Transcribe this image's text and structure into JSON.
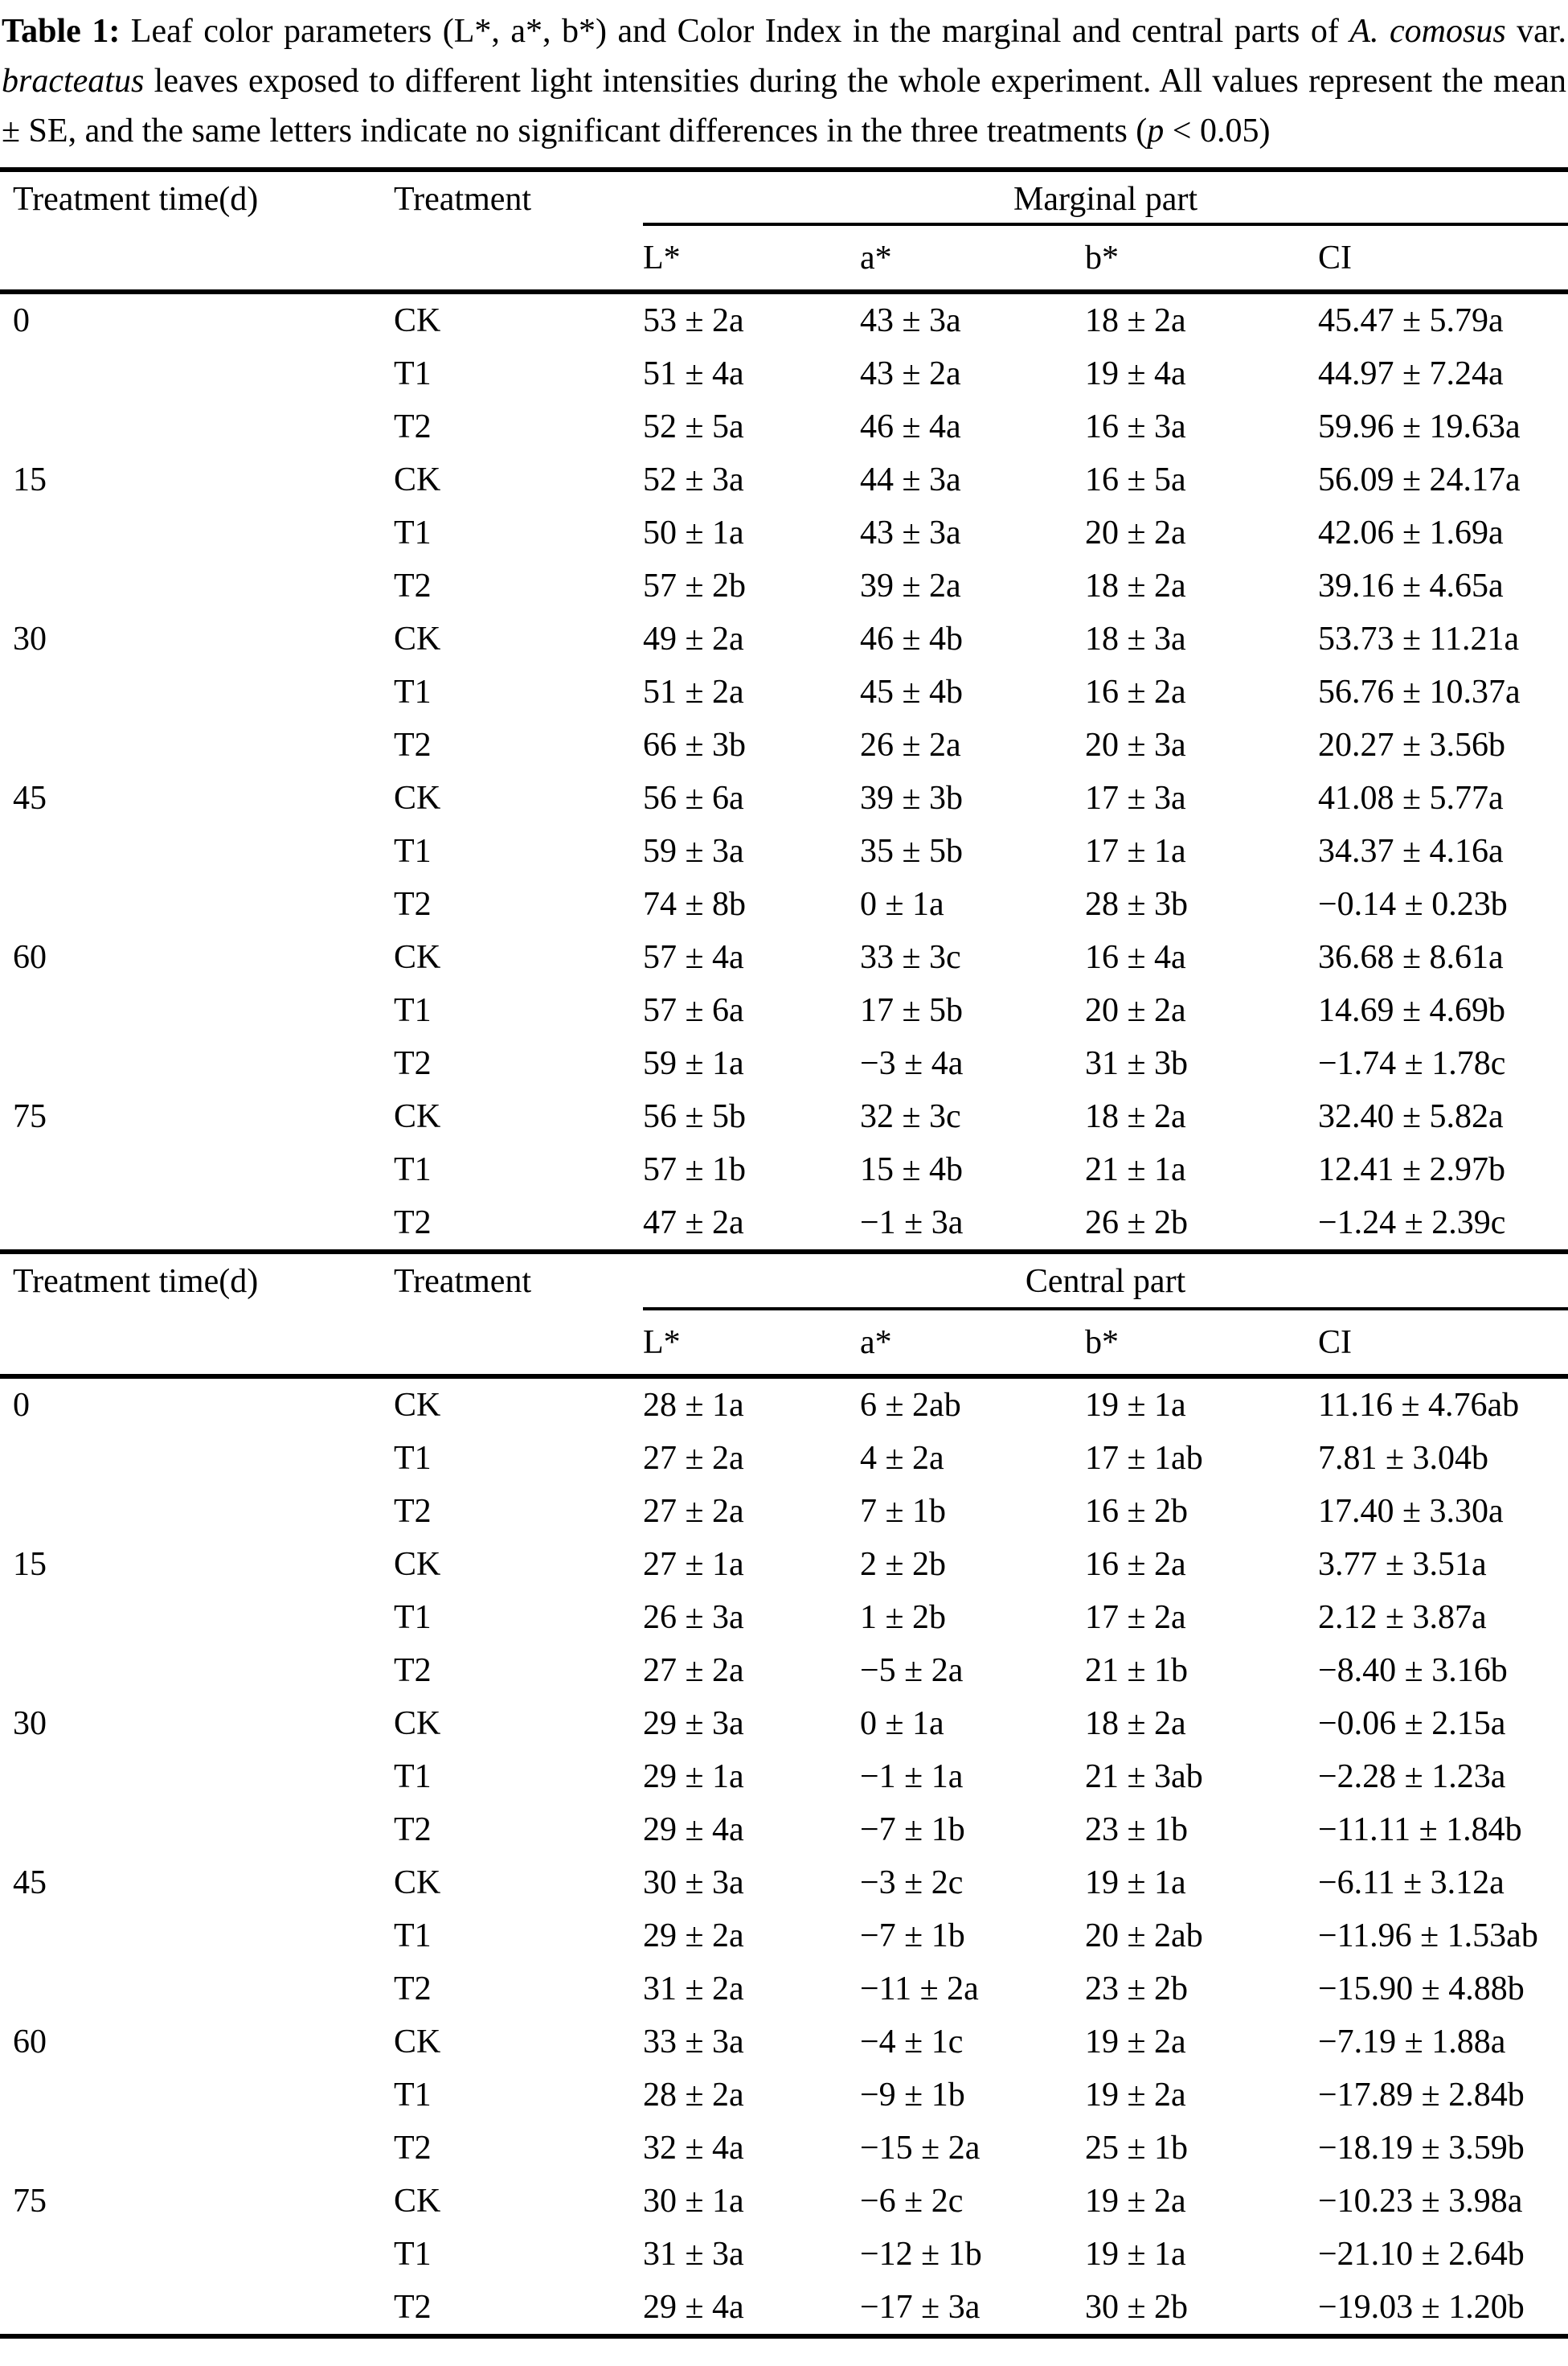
{
  "caption": {
    "label": "Table 1:",
    "part1": "  Leaf color parameters (L*, a*, b*) and Color Index in the marginal and central parts of ",
    "species": "A. comosus",
    "part2": " var. ",
    "variety": "bracteatus",
    "part3": " leaves exposed to different light intensities during the whole experiment. All values represent the mean ± SE, and the same letters indicate no significant differences in the three treatments (",
    "p_symbol": "p",
    "part4": " < 0.05)"
  },
  "sections": [
    {
      "col_headers": [
        "Treatment time(d)",
        "Treatment"
      ],
      "span_header": "Marginal part",
      "sub_headers": [
        "L*",
        "a*",
        "b*",
        "CI"
      ],
      "groups": [
        {
          "time": "0",
          "rows": [
            {
              "treatment": "CK",
              "values": [
                "53 ± 2a",
                "43 ± 3a",
                "18 ± 2a",
                "45.47 ± 5.79a"
              ]
            },
            {
              "treatment": "T1",
              "values": [
                "51 ± 4a",
                "43 ± 2a",
                "19 ± 4a",
                "44.97 ± 7.24a"
              ]
            },
            {
              "treatment": "T2",
              "values": [
                "52 ± 5a",
                "46 ± 4a",
                "16 ± 3a",
                "59.96 ± 19.63a"
              ]
            }
          ]
        },
        {
          "time": "15",
          "rows": [
            {
              "treatment": "CK",
              "values": [
                "52 ± 3a",
                "44 ± 3a",
                "16 ± 5a",
                "56.09 ± 24.17a"
              ]
            },
            {
              "treatment": "T1",
              "values": [
                "50 ± 1a",
                "43 ± 3a",
                "20 ± 2a",
                "42.06 ± 1.69a"
              ]
            },
            {
              "treatment": "T2",
              "values": [
                "57 ± 2b",
                "39 ± 2a",
                "18 ± 2a",
                "39.16 ± 4.65a"
              ]
            }
          ]
        },
        {
          "time": "30",
          "rows": [
            {
              "treatment": "CK",
              "values": [
                "49 ± 2a",
                "46 ± 4b",
                "18 ± 3a",
                "53.73 ± 11.21a"
              ]
            },
            {
              "treatment": "T1",
              "values": [
                "51 ± 2a",
                "45 ± 4b",
                "16 ± 2a",
                "56.76 ± 10.37a"
              ]
            },
            {
              "treatment": "T2",
              "values": [
                "66 ± 3b",
                "26 ± 2a",
                "20 ± 3a",
                "20.27 ± 3.56b"
              ]
            }
          ]
        },
        {
          "time": "45",
          "rows": [
            {
              "treatment": "CK",
              "values": [
                "56 ± 6a",
                "39 ± 3b",
                "17 ± 3a",
                "41.08 ± 5.77a"
              ]
            },
            {
              "treatment": "T1",
              "values": [
                "59 ± 3a",
                "35 ± 5b",
                "17 ± 1a",
                "34.37 ± 4.16a"
              ]
            },
            {
              "treatment": "T2",
              "values": [
                "74 ± 8b",
                "0 ± 1a",
                "28 ± 3b",
                "−0.14 ± 0.23b"
              ]
            }
          ]
        },
        {
          "time": "60",
          "rows": [
            {
              "treatment": "CK",
              "values": [
                "57 ± 4a",
                "33 ± 3c",
                "16 ± 4a",
                "36.68 ± 8.61a"
              ]
            },
            {
              "treatment": "T1",
              "values": [
                "57 ± 6a",
                "17 ± 5b",
                "20 ± 2a",
                "14.69 ± 4.69b"
              ]
            },
            {
              "treatment": "T2",
              "values": [
                "59 ± 1a",
                "−3 ± 4a",
                "31 ± 3b",
                "−1.74 ± 1.78c"
              ]
            }
          ]
        },
        {
          "time": "75",
          "rows": [
            {
              "treatment": "CK",
              "values": [
                "56 ± 5b",
                "32 ± 3c",
                "18 ± 2a",
                "32.40 ± 5.82a"
              ]
            },
            {
              "treatment": "T1",
              "values": [
                "57 ± 1b",
                "15 ± 4b",
                "21 ± 1a",
                "12.41 ± 2.97b"
              ]
            },
            {
              "treatment": "T2",
              "values": [
                "47 ± 2a",
                "−1 ± 3a",
                "26 ± 2b",
                "−1.24 ± 2.39c"
              ]
            }
          ]
        }
      ]
    },
    {
      "col_headers": [
        "Treatment time(d)",
        "Treatment"
      ],
      "span_header": "Central part",
      "sub_headers": [
        "L*",
        "a*",
        "b*",
        "CI"
      ],
      "groups": [
        {
          "time": "0",
          "rows": [
            {
              "treatment": "CK",
              "values": [
                "28 ± 1a",
                "6 ± 2ab",
                "19 ± 1a",
                "11.16 ± 4.76ab"
              ]
            },
            {
              "treatment": "T1",
              "values": [
                "27 ± 2a",
                "4 ± 2a",
                "17 ± 1ab",
                "7.81 ± 3.04b"
              ]
            },
            {
              "treatment": "T2",
              "values": [
                "27 ± 2a",
                "7 ± 1b",
                "16 ± 2b",
                "17.40 ± 3.30a"
              ]
            }
          ]
        },
        {
          "time": "15",
          "rows": [
            {
              "treatment": "CK",
              "values": [
                "27 ± 1a",
                "2 ± 2b",
                "16 ± 2a",
                "3.77 ± 3.51a"
              ]
            },
            {
              "treatment": "T1",
              "values": [
                "26 ± 3a",
                "1 ± 2b",
                "17 ± 2a",
                "2.12 ± 3.87a"
              ]
            },
            {
              "treatment": "T2",
              "values": [
                "27 ± 2a",
                "−5 ± 2a",
                "21 ± 1b",
                "−8.40 ± 3.16b"
              ]
            }
          ]
        },
        {
          "time": "30",
          "rows": [
            {
              "treatment": "CK",
              "values": [
                "29 ± 3a",
                "0 ± 1a",
                "18 ± 2a",
                "−0.06 ± 2.15a"
              ]
            },
            {
              "treatment": "T1",
              "values": [
                "29 ± 1a",
                "−1 ± 1a",
                "21 ± 3ab",
                "−2.28 ± 1.23a"
              ]
            },
            {
              "treatment": "T2",
              "values": [
                "29 ± 4a",
                "−7 ± 1b",
                "23 ± 1b",
                "−11.11 ± 1.84b"
              ]
            }
          ]
        },
        {
          "time": "45",
          "rows": [
            {
              "treatment": "CK",
              "values": [
                "30 ± 3a",
                "−3 ± 2c",
                "19 ± 1a",
                "−6.11 ± 3.12a"
              ]
            },
            {
              "treatment": "T1",
              "values": [
                "29 ± 2a",
                "−7 ± 1b",
                "20 ± 2ab",
                "−11.96 ± 1.53ab"
              ]
            },
            {
              "treatment": "T2",
              "values": [
                "31 ± 2a",
                "−11 ± 2a",
                "23 ± 2b",
                "−15.90 ± 4.88b"
              ]
            }
          ]
        },
        {
          "time": "60",
          "rows": [
            {
              "treatment": "CK",
              "values": [
                "33 ± 3a",
                "−4 ± 1c",
                "19 ± 2a",
                "−7.19 ± 1.88a"
              ]
            },
            {
              "treatment": "T1",
              "values": [
                "28 ± 2a",
                "−9 ± 1b",
                "19 ± 2a",
                "−17.89 ± 2.84b"
              ]
            },
            {
              "treatment": "T2",
              "values": [
                "32 ± 4a",
                "−15 ± 2a",
                "25 ± 1b",
                "−18.19 ± 3.59b"
              ]
            }
          ]
        },
        {
          "time": "75",
          "rows": [
            {
              "treatment": "CK",
              "values": [
                "30 ± 1a",
                "−6 ± 2c",
                "19 ± 2a",
                "−10.23 ± 3.98a"
              ]
            },
            {
              "treatment": "T1",
              "values": [
                "31 ± 3a",
                "−12 ± 1b",
                "19 ± 1a",
                "−21.10 ± 2.64b"
              ]
            },
            {
              "treatment": "T2",
              "values": [
                "29 ± 4a",
                "−17 ± 3a",
                "30 ± 2b",
                "−19.03 ± 1.20b"
              ]
            }
          ]
        }
      ]
    }
  ]
}
